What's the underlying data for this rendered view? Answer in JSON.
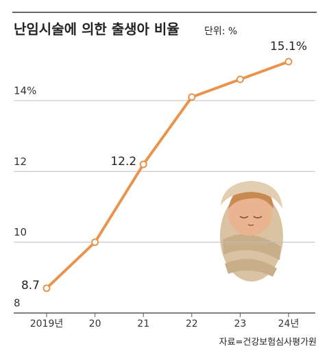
{
  "chart_data": {
    "type": "line",
    "title": "난임시술에 의한 출생아 비율",
    "unit_label": "단위: %",
    "source": "자료=건강보험심사평가원",
    "categories": [
      "2019년",
      "20",
      "21",
      "22",
      "23",
      "24년"
    ],
    "values": [
      8.7,
      10.0,
      12.2,
      14.1,
      14.6,
      15.1
    ],
    "value_labels": [
      "8.7",
      null,
      "12.2",
      null,
      null,
      "15.1%"
    ],
    "color": "#e8944d",
    "ylim": [
      8,
      16
    ],
    "yticks": [
      8,
      10,
      12,
      {
        "value": 14,
        "label": "14%"
      }
    ],
    "grid": true
  }
}
